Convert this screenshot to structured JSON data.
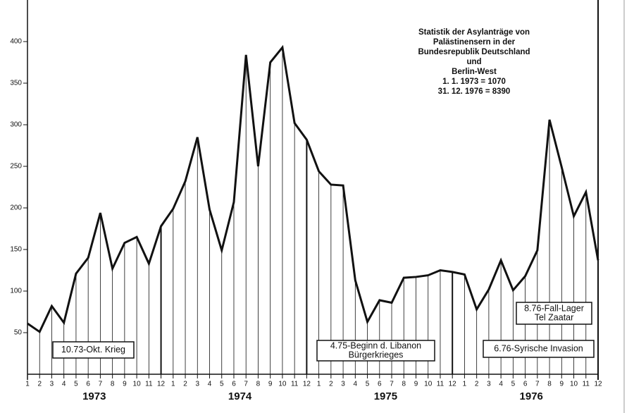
{
  "chart_data": {
    "type": "line",
    "title_lines": [
      "Statistik der Asylanträge von",
      "Palästinensern in der",
      "Bundesrepublik Deutschland",
      "und",
      "Berlin-West",
      "1.   1. 1973 = 1070",
      "31. 12. 1976 = 8390"
    ],
    "categories": [
      "1",
      "2",
      "3",
      "4",
      "5",
      "6",
      "7",
      "8",
      "9",
      "10",
      "11",
      "12",
      "1",
      "2",
      "3",
      "4",
      "5",
      "6",
      "7",
      "8",
      "9",
      "10",
      "11",
      "12",
      "1",
      "2",
      "3",
      "4",
      "5",
      "6",
      "7",
      "8",
      "9",
      "10",
      "11",
      "12",
      "1",
      "2",
      "3",
      "4",
      "5",
      "6",
      "7",
      "8",
      "9",
      "10",
      "11",
      "12"
    ],
    "years": [
      "1973",
      "1974",
      "1975",
      "1976"
    ],
    "values": [
      61,
      51,
      82,
      62,
      121,
      140,
      194,
      127,
      158,
      165,
      133,
      178,
      199,
      232,
      285,
      198,
      149,
      207,
      384,
      250,
      375,
      393,
      302,
      282,
      244,
      228,
      227,
      113,
      63,
      89,
      86,
      116,
      117,
      119,
      125,
      123,
      120,
      78,
      102,
      137,
      101,
      118,
      149,
      306,
      249,
      190,
      219,
      137
    ],
    "color": "#111111",
    "ylim": [
      0,
      450
    ],
    "yticks": [
      50,
      100,
      150,
      200,
      250,
      300,
      350,
      400
    ],
    "annotations": [
      {
        "lines": [
          "10.73-Okt. Krieg"
        ]
      },
      {
        "lines": [
          "4.75-Beginn d. Libanon",
          "Bürgerkrieges"
        ]
      },
      {
        "lines": [
          "8.76-Fall-Lager",
          "Tel Zaatar"
        ]
      },
      {
        "lines": [
          "6.76-Syrische Invasion"
        ]
      }
    ]
  }
}
